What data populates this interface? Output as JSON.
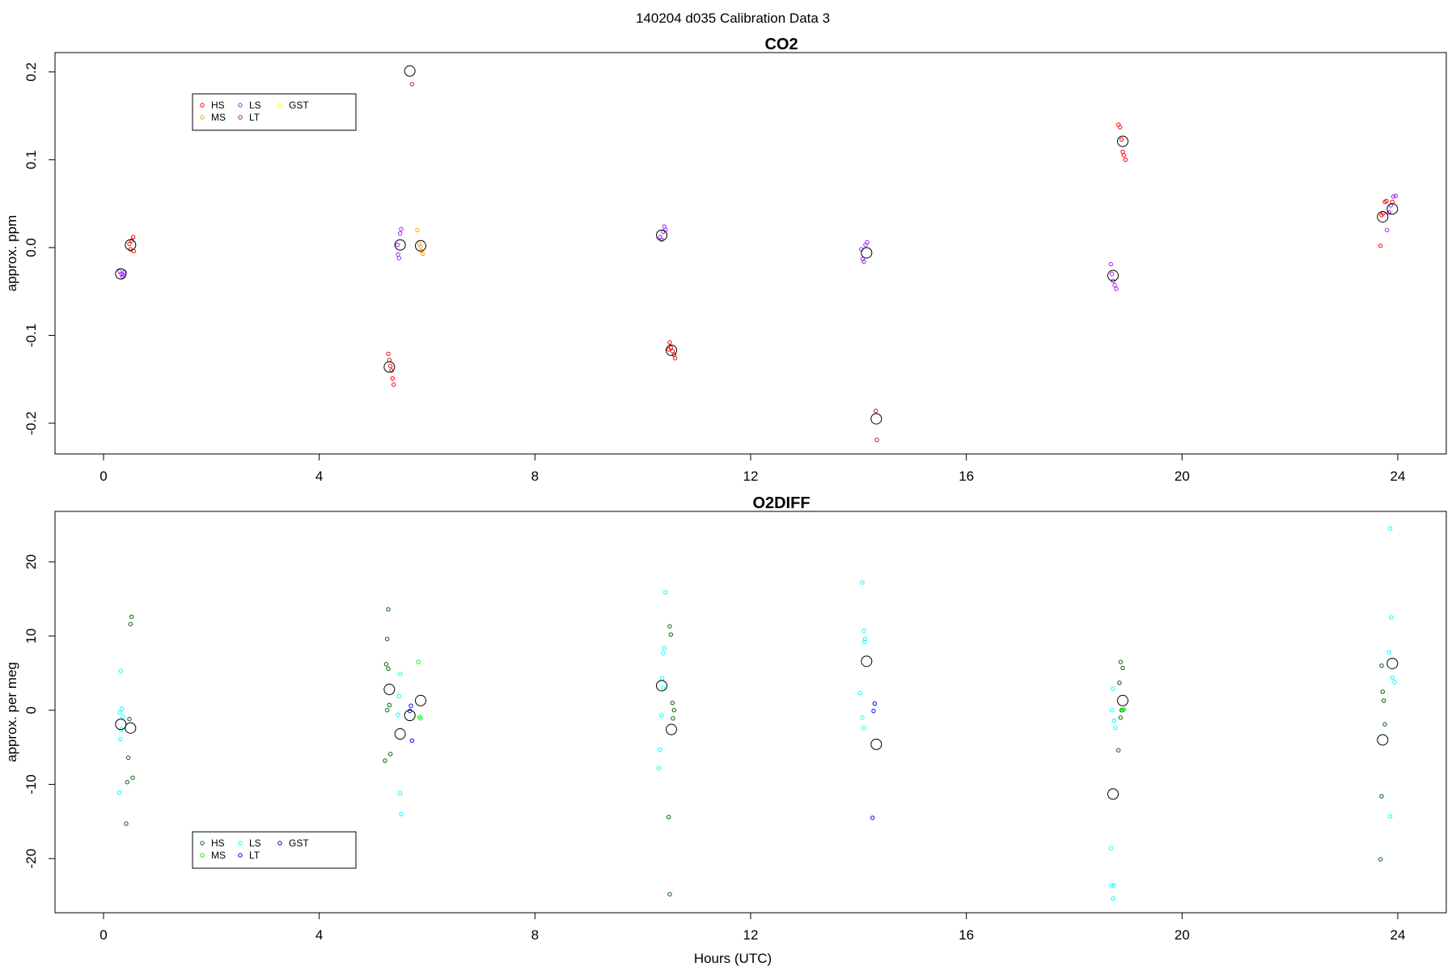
{
  "figure": {
    "title": "140204   d035   Calibration Data 3",
    "xlabel": "Hours (UTC)"
  },
  "chart_data": [
    {
      "type": "scatter",
      "title": "CO2",
      "xlabel": "",
      "ylabel": "approx. ppm",
      "xlim": [
        -0.9,
        24.9
      ],
      "ylim": [
        -0.235,
        0.222
      ],
      "xticks": [
        0,
        4,
        8,
        12,
        16,
        20,
        24
      ],
      "yticks": [
        -0.2,
        -0.1,
        0.0,
        0.1,
        0.2
      ],
      "ytick_labels": [
        "-0.2",
        "-0.1",
        "0.0",
        "0.1",
        "0.2"
      ],
      "legend": {
        "placement": "top-left",
        "columns": [
          [
            "HS",
            "MS"
          ],
          [
            "LS",
            "LT"
          ],
          [
            "GST"
          ]
        ]
      },
      "series": [
        {
          "name": "HS",
          "color": "#ff0000",
          "points": [
            [
              0.48,
              0.004
            ],
            [
              0.52,
              0.008
            ],
            [
              0.5,
              -0.002
            ],
            [
              0.55,
              0.012
            ],
            [
              0.56,
              -0.004
            ],
            [
              5.28,
              -0.121
            ],
            [
              5.3,
              -0.128
            ],
            [
              5.34,
              -0.14
            ],
            [
              5.36,
              -0.149
            ],
            [
              5.38,
              -0.156
            ],
            [
              5.32,
              -0.135
            ],
            [
              10.5,
              -0.108
            ],
            [
              10.52,
              -0.114
            ],
            [
              10.55,
              -0.118
            ],
            [
              10.58,
              -0.122
            ],
            [
              10.6,
              -0.126
            ],
            [
              10.48,
              -0.116
            ],
            [
              18.82,
              0.14
            ],
            [
              18.85,
              0.137
            ],
            [
              18.88,
              0.123
            ],
            [
              18.9,
              0.109
            ],
            [
              18.92,
              0.105
            ],
            [
              18.95,
              0.1
            ],
            [
              23.68,
              0.002
            ],
            [
              23.7,
              0.037
            ],
            [
              23.73,
              0.039
            ],
            [
              23.76,
              0.052
            ],
            [
              23.79,
              0.053
            ],
            [
              23.9,
              0.052
            ]
          ]
        },
        {
          "name": "MS",
          "color": "#ffa500",
          "points": [
            [
              5.82,
              0.02
            ],
            [
              5.86,
              0.004
            ],
            [
              5.88,
              0.001
            ],
            [
              5.9,
              -0.004
            ],
            [
              5.92,
              -0.007
            ]
          ]
        },
        {
          "name": "LS",
          "color": "#a020f0",
          "points": [
            [
              0.3,
              -0.027
            ],
            [
              0.33,
              -0.03
            ],
            [
              0.36,
              -0.031
            ],
            [
              0.39,
              -0.028
            ],
            [
              0.35,
              -0.033
            ],
            [
              5.45,
              0.003
            ],
            [
              5.48,
              -0.012
            ],
            [
              5.5,
              0.016
            ],
            [
              5.52,
              0.021
            ],
            [
              5.46,
              -0.008
            ],
            [
              10.32,
              0.012
            ],
            [
              10.35,
              0.009
            ],
            [
              10.38,
              0.018
            ],
            [
              10.4,
              0.024
            ],
            [
              10.42,
              0.02
            ],
            [
              14.05,
              -0.002
            ],
            [
              14.08,
              -0.013
            ],
            [
              14.1,
              -0.016
            ],
            [
              14.13,
              0.003
            ],
            [
              14.16,
              0.006
            ],
            [
              18.68,
              -0.019
            ],
            [
              18.7,
              -0.03
            ],
            [
              18.72,
              -0.038
            ],
            [
              18.75,
              -0.043
            ],
            [
              18.78,
              -0.047
            ],
            [
              23.8,
              0.02
            ],
            [
              23.84,
              0.04
            ],
            [
              23.87,
              0.048
            ],
            [
              23.92,
              0.058
            ],
            [
              23.96,
              0.059
            ]
          ]
        },
        {
          "name": "LT",
          "color": "#b22222",
          "points": [
            [
              5.72,
              0.186
            ],
            [
              14.32,
              -0.186
            ],
            [
              14.34,
              -0.219
            ]
          ]
        },
        {
          "name": "GST",
          "color": "#ffff00",
          "points": []
        }
      ],
      "means": [
        [
          0.32,
          -0.03
        ],
        [
          0.5,
          0.003
        ],
        [
          5.3,
          -0.136
        ],
        [
          5.5,
          0.003
        ],
        [
          5.68,
          0.201
        ],
        [
          5.88,
          0.002
        ],
        [
          10.35,
          0.014
        ],
        [
          10.53,
          -0.117
        ],
        [
          14.15,
          -0.006
        ],
        [
          14.33,
          -0.195
        ],
        [
          18.72,
          -0.032
        ],
        [
          18.9,
          0.121
        ],
        [
          23.72,
          0.035
        ],
        [
          23.9,
          0.044
        ]
      ]
    },
    {
      "type": "scatter",
      "title": "O2DIFF",
      "xlabel": "Hours (UTC)",
      "ylabel": "approx. per meg",
      "xlim": [
        -0.9,
        24.9
      ],
      "ylim": [
        -27.3,
        26.8
      ],
      "xticks": [
        0,
        4,
        8,
        12,
        16,
        20,
        24
      ],
      "yticks": [
        -20,
        -10,
        0,
        10,
        20
      ],
      "ytick_labels": [
        "-20",
        "-10",
        "0",
        "10",
        "20"
      ],
      "legend": {
        "placement": "bottom-left",
        "columns": [
          [
            "HS",
            "MS"
          ],
          [
            "LS",
            "LT"
          ],
          [
            "GST"
          ]
        ]
      },
      "series": [
        {
          "name": "HS",
          "color": "#006400",
          "points": [
            [
              0.52,
              12.6
            ],
            [
              0.5,
              11.6
            ],
            [
              0.48,
              -1.2
            ],
            [
              0.46,
              -6.4
            ],
            [
              0.44,
              -9.7
            ],
            [
              0.54,
              -9.1
            ],
            [
              0.42,
              -15.3
            ],
            [
              5.26,
              9.6
            ],
            [
              5.24,
              6.2
            ],
            [
              5.28,
              5.6
            ],
            [
              5.3,
              0.7
            ],
            [
              5.26,
              0.0
            ],
            [
              5.32,
              -5.9
            ],
            [
              5.22,
              -6.8
            ],
            [
              5.28,
              13.6
            ],
            [
              10.5,
              11.3
            ],
            [
              10.52,
              10.2
            ],
            [
              10.55,
              1.0
            ],
            [
              10.58,
              0.0
            ],
            [
              10.56,
              -1.1
            ],
            [
              10.48,
              -14.4
            ],
            [
              10.5,
              -24.8
            ],
            [
              18.86,
              6.5
            ],
            [
              18.9,
              5.7
            ],
            [
              18.84,
              3.7
            ],
            [
              18.88,
              0.0
            ],
            [
              18.86,
              -1.0
            ],
            [
              18.82,
              -5.4
            ],
            [
              23.7,
              6.0
            ],
            [
              23.72,
              2.5
            ],
            [
              23.74,
              1.3
            ],
            [
              23.76,
              -1.9
            ],
            [
              23.7,
              -11.6
            ],
            [
              23.68,
              -20.1
            ]
          ]
        },
        {
          "name": "MS",
          "color": "#00ff00",
          "points": [
            [
              5.84,
              6.5
            ],
            [
              5.86,
              -0.9
            ],
            [
              5.88,
              -1.1
            ],
            [
              18.9,
              0.0
            ],
            [
              18.92,
              0.1
            ]
          ]
        },
        {
          "name": "LS",
          "color": "#00ffff",
          "points": [
            [
              0.32,
              5.3
            ],
            [
              0.34,
              0.2
            ],
            [
              0.3,
              -0.3
            ],
            [
              0.36,
              -0.9
            ],
            [
              0.33,
              -2.6
            ],
            [
              0.31,
              -3.9
            ],
            [
              0.29,
              -11.1
            ],
            [
              5.5,
              4.9
            ],
            [
              5.48,
              1.9
            ],
            [
              5.46,
              -0.6
            ],
            [
              5.5,
              -11.2
            ],
            [
              5.52,
              -14.0
            ],
            [
              10.42,
              15.9
            ],
            [
              10.4,
              8.4
            ],
            [
              10.38,
              7.7
            ],
            [
              10.36,
              4.3
            ],
            [
              10.38,
              3.0
            ],
            [
              10.35,
              -0.7
            ],
            [
              10.32,
              -5.3
            ],
            [
              10.3,
              -7.8
            ],
            [
              14.07,
              17.2
            ],
            [
              14.1,
              10.7
            ],
            [
              14.12,
              9.6
            ],
            [
              14.11,
              9.2
            ],
            [
              14.03,
              2.3
            ],
            [
              14.07,
              -1.0
            ],
            [
              14.1,
              -2.4
            ],
            [
              18.72,
              2.9
            ],
            [
              18.7,
              0.0
            ],
            [
              18.74,
              -1.4
            ],
            [
              18.76,
              -2.4
            ],
            [
              18.68,
              -18.6
            ],
            [
              18.7,
              -23.6
            ],
            [
              18.74,
              -23.6
            ],
            [
              18.72,
              -25.4
            ],
            [
              23.86,
              24.5
            ],
            [
              23.88,
              12.5
            ],
            [
              23.84,
              7.8
            ],
            [
              23.9,
              4.4
            ],
            [
              23.94,
              3.8
            ],
            [
              23.86,
              -14.3
            ]
          ]
        },
        {
          "name": "LT",
          "color": "#0000ff",
          "points": [
            [
              5.7,
              0.6
            ],
            [
              5.68,
              -0.1
            ],
            [
              5.72,
              -4.1
            ],
            [
              14.3,
              0.9
            ],
            [
              14.28,
              -0.1
            ],
            [
              14.26,
              -14.5
            ]
          ]
        },
        {
          "name": "GST",
          "color": "#00008b",
          "points": []
        }
      ],
      "means": [
        [
          0.32,
          -1.9
        ],
        [
          0.5,
          -2.4
        ],
        [
          5.3,
          2.8
        ],
        [
          5.5,
          -3.2
        ],
        [
          5.68,
          -0.7
        ],
        [
          5.88,
          1.3
        ],
        [
          10.35,
          3.3
        ],
        [
          10.53,
          -2.6
        ],
        [
          14.15,
          6.6
        ],
        [
          14.33,
          -4.6
        ],
        [
          18.72,
          -11.3
        ],
        [
          18.9,
          1.3
        ],
        [
          23.72,
          -4.0
        ],
        [
          23.9,
          6.3
        ]
      ]
    }
  ]
}
